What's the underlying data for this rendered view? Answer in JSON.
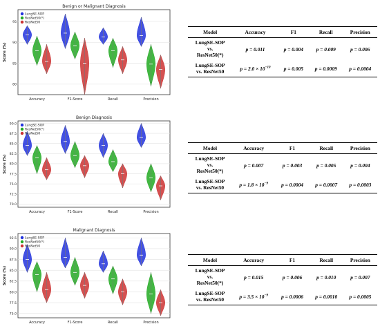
{
  "charts": [
    {
      "title": "Benign or Malignant Diagnosis",
      "ylabel": "Score (%)",
      "categories": [
        "Accuracy",
        "F1-Score",
        "Recall",
        "Precision"
      ],
      "legend": [
        "LungSE-SOP",
        "ResNet50(*)",
        "ResNet50"
      ],
      "yticks": [
        80,
        85,
        90,
        95
      ],
      "ylim": [
        77.5,
        97.8
      ],
      "colors": [
        "#2233dd",
        "#22aa22",
        "#cc3333"
      ]
    },
    {
      "title": "Benign Diagnosis",
      "ylabel": "Score (%)",
      "categories": [
        "Accuracy",
        "F1-Score",
        "Recall",
        "Precision"
      ],
      "legend": [
        "LungSE-SOP",
        "ResNet50(*)",
        "ResNet50"
      ],
      "yticks": [
        70.0,
        72.5,
        75.0,
        77.5,
        80.0,
        82.5,
        85.0,
        87.5,
        90.0
      ],
      "ylim": [
        69.2,
        90.6
      ],
      "colors": [
        "#2233dd",
        "#22aa22",
        "#cc3333"
      ]
    },
    {
      "title": "Malignant Diagnosis",
      "ylabel": "Score (%)",
      "categories": [
        "Accuracy",
        "F1-Score",
        "Recall",
        "Precision"
      ],
      "legend": [
        "LungSE-SOP",
        "ResNet50(*)",
        "ResNet50"
      ],
      "yticks": [
        75.0,
        77.5,
        80.0,
        82.5,
        85.0,
        87.5,
        90.0,
        92.5
      ],
      "ylim": [
        74.0,
        93.5
      ],
      "colors": [
        "#2233dd",
        "#22aa22",
        "#cc3333"
      ]
    }
  ],
  "chart_data": [
    {
      "type": "violin",
      "title": "Benign or Malignant Diagnosis",
      "ylabel": "Score (%)",
      "categories": [
        "Accuracy",
        "F1-Score",
        "Recall",
        "Precision"
      ],
      "ylim": [
        77.5,
        97.8
      ],
      "legend_position": "top-left",
      "grid": true,
      "series": [
        {
          "name": "LungSE-SOP",
          "color": "#2233dd",
          "min": [
            89.5,
            88.5,
            89.5,
            89.0
          ],
          "max": [
            94.0,
            96.8,
            93.5,
            96.0
          ],
          "median": [
            91.8,
            92.2,
            91.3,
            91.6
          ]
        },
        {
          "name": "ResNet50(*)",
          "color": "#22aa22",
          "min": [
            84.5,
            86.0,
            84.0,
            79.5
          ],
          "max": [
            91.5,
            92.5,
            91.0,
            89.5
          ],
          "median": [
            88.0,
            89.2,
            88.0,
            84.8
          ]
        },
        {
          "name": "ResNet50",
          "color": "#cc3333",
          "min": [
            82.5,
            77.5,
            82.5,
            79.0
          ],
          "max": [
            89.5,
            91.0,
            89.0,
            87.0
          ],
          "median": [
            85.5,
            85.0,
            85.8,
            83.5
          ]
        }
      ]
    },
    {
      "type": "violin",
      "title": "Benign Diagnosis",
      "ylabel": "Score (%)",
      "categories": [
        "Accuracy",
        "F1-Score",
        "Recall",
        "Precision"
      ],
      "ylim": [
        69.2,
        90.6
      ],
      "legend_position": "top-left",
      "grid": true,
      "series": [
        {
          "name": "LungSE-SOP",
          "color": "#2233dd",
          "min": [
            82.0,
            82.5,
            81.5,
            84.0
          ],
          "max": [
            88.0,
            89.5,
            87.5,
            90.0
          ],
          "median": [
            84.5,
            85.5,
            84.5,
            86.5
          ]
        },
        {
          "name": "ResNet50(*)",
          "color": "#22aa22",
          "min": [
            77.5,
            79.0,
            78.0,
            73.0
          ],
          "max": [
            84.5,
            85.5,
            83.5,
            80.0
          ],
          "median": [
            81.5,
            82.0,
            80.5,
            76.5
          ]
        },
        {
          "name": "ResNet50",
          "color": "#cc3333",
          "min": [
            76.0,
            76.5,
            74.0,
            71.0
          ],
          "max": [
            81.5,
            82.0,
            80.0,
            77.0
          ],
          "median": [
            78.5,
            79.5,
            77.5,
            74.5
          ]
        }
      ]
    },
    {
      "type": "violin",
      "title": "Malignant Diagnosis",
      "ylabel": "Score (%)",
      "categories": [
        "Accuracy",
        "F1-Score",
        "Recall",
        "Precision"
      ],
      "ylim": [
        74.0,
        93.5
      ],
      "legend_position": "top-left",
      "grid": true,
      "series": [
        {
          "name": "LungSE-SOP",
          "color": "#2233dd",
          "min": [
            84.5,
            85.5,
            84.5,
            86.0
          ],
          "max": [
            91.0,
            92.5,
            89.5,
            92.5
          ],
          "median": [
            87.5,
            88.0,
            86.5,
            88.5
          ]
        },
        {
          "name": "ResNet50(*)",
          "color": "#22aa22",
          "min": [
            80.0,
            81.5,
            79.5,
            75.0
          ],
          "max": [
            87.0,
            88.0,
            86.0,
            84.5
          ],
          "median": [
            84.0,
            84.5,
            83.0,
            79.5
          ]
        },
        {
          "name": "ResNet50",
          "color": "#cc3333",
          "min": [
            77.5,
            78.5,
            77.0,
            74.5
          ],
          "max": [
            84.5,
            84.5,
            83.0,
            80.5
          ],
          "median": [
            80.5,
            81.5,
            80.0,
            77.5
          ]
        }
      ]
    }
  ],
  "tables": [
    {
      "headers": [
        "Model",
        "Accuracy",
        "F1",
        "Recall",
        "Precision"
      ],
      "rows": [
        {
          "model_l1": "LungSE-SOP",
          "model_l2": "vs.",
          "model_l3": "ResNet50(*)",
          "acc": "p = 0.011",
          "f1": "p = 0.004",
          "recall": "p = 0.009",
          "precision": "p = 0.006"
        },
        {
          "model_l1": "LungSE-SOP",
          "model_l2": "vs. ResNet50",
          "model_l3": "",
          "acc": "p = 2.0 × 10",
          "acc_exp": "−10",
          "f1": "p = 0.005",
          "recall": "p = 0.0009",
          "precision": "p = 0.0004"
        }
      ]
    },
    {
      "headers": [
        "Model",
        "Accuracy",
        "F1",
        "Recall",
        "Precision"
      ],
      "rows": [
        {
          "model_l1": "LungSE-SOP",
          "model_l2": "vs.",
          "model_l3": "ResNet50(*)",
          "acc": "p = 0.007",
          "f1": "p = 0.003",
          "recall": "p = 0.005",
          "precision": "p = 0.004"
        },
        {
          "model_l1": "LungSE-SOP",
          "model_l2": "vs. ResNet50",
          "model_l3": "",
          "acc": "p = 1.8 × 10",
          "acc_exp": "−9",
          "f1": "p = 0.0004",
          "recall": "p = 0.0007",
          "precision": "p = 0.0003"
        }
      ]
    },
    {
      "headers": [
        "Model",
        "Accuracy",
        "F1",
        "Recall",
        "Precision"
      ],
      "rows": [
        {
          "model_l1": "LungSE-SOP",
          "model_l2": "vs.",
          "model_l3": "ResNet50(*)",
          "acc": "p = 0.015",
          "f1": "p = 0.006",
          "recall": "p = 0.010",
          "precision": "p = 0.007"
        },
        {
          "model_l1": "LungSE-SOP",
          "model_l2": "vs. ResNet50",
          "model_l3": "",
          "acc": "p = 3.5 × 10",
          "acc_exp": "−9",
          "f1": "p = 0.0006",
          "recall": "p = 0.0010",
          "precision": "p = 0.0005"
        }
      ]
    }
  ]
}
